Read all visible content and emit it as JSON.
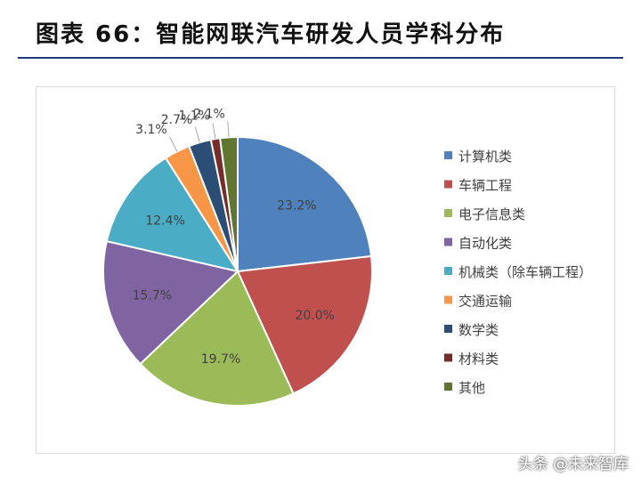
{
  "figure": {
    "title": "图表 66：智能网联汽车研发人员学科分布"
  },
  "watermark": "头条 @未来智库",
  "chart_data": {
    "type": "pie",
    "title": "",
    "start_angle_deg": 0,
    "direction": "clockwise",
    "legend_position": "right",
    "slices": [
      {
        "label": "计算机类",
        "value": 23.2,
        "display": "23.2%",
        "color": "#4f81bd"
      },
      {
        "label": "车辆工程",
        "value": 20.0,
        "display": "20.0%",
        "color": "#c0504d"
      },
      {
        "label": "电子信息类",
        "value": 19.7,
        "display": "19.7%",
        "color": "#9bbb59"
      },
      {
        "label": "自动化类",
        "value": 15.7,
        "display": "15.7%",
        "color": "#8064a2"
      },
      {
        "label": "机械类（除车辆工程）",
        "value": 12.4,
        "display": "12.4%",
        "color": "#4bacc6"
      },
      {
        "label": "交通运输",
        "value": 3.1,
        "display": "3.1%",
        "color": "#f79646"
      },
      {
        "label": "数学类",
        "value": 2.7,
        "display": "2.7%",
        "color": "#2c4d75"
      },
      {
        "label": "材料类",
        "value": 1.1,
        "display": "1.1%",
        "color": "#772c2a"
      },
      {
        "label": "其他",
        "value": 2.1,
        "display": "2.1%",
        "color": "#5f7530"
      }
    ]
  }
}
